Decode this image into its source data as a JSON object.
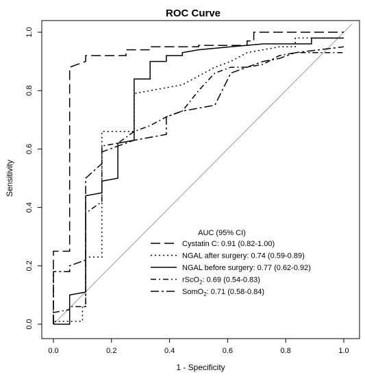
{
  "chart_data": {
    "type": "line",
    "title": "ROC Curve",
    "xlabel": "1 - Specificity",
    "ylabel": "Sensitivity",
    "xlim": [
      0,
      1
    ],
    "ylim": [
      0,
      1
    ],
    "x_ticks": [
      "0.0",
      "0.2",
      "0.4",
      "0.6",
      "0.8",
      "1.0"
    ],
    "y_ticks": [
      "0.0",
      "0.2",
      "0.4",
      "0.6",
      "0.8",
      "1.0"
    ],
    "grid": false,
    "diagonal_reference": true,
    "legend": {
      "title": "AUC (95% CI)",
      "placement": "bottom-right",
      "entries": [
        {
          "label": "Cystatin C: 0.91 (0.82-1.00)",
          "dash": "long-dash"
        },
        {
          "label": "NGAL after surgery: 0.74 (0.59-0.89)",
          "dash": "dotted"
        },
        {
          "label": "NGAL before surgery: 0.77 (0.62-0.92)",
          "dash": "solid"
        },
        {
          "label": "rScO2: 0.69 (0.54-0.83)",
          "label_main": "rScO",
          "label_sub": "2",
          "label_rest": ": 0.69 (0.54-0.83)",
          "dash": "dash-dot"
        },
        {
          "label": "SomO2: 0.71 (0.58-0.84)",
          "label_main": "SomO",
          "label_sub": "2",
          "label_rest": ": 0.71 (0.58-0.84)",
          "dash": "long-dash-dot"
        }
      ]
    },
    "series": [
      {
        "name": "Cystatin C",
        "x": [
          0,
          0,
          0.056,
          0.056,
          0.056,
          0.111,
          0.111,
          0.167,
          0.25,
          0.25,
          0.333,
          0.333,
          0.5,
          0.5,
          0.667,
          0.667,
          0.69,
          0.69,
          1.0,
          1.0
        ],
        "y": [
          0,
          0.25,
          0.25,
          0.5,
          0.88,
          0.9,
          0.92,
          0.92,
          0.92,
          0.94,
          0.94,
          0.95,
          0.95,
          0.955,
          0.955,
          0.97,
          0.97,
          1.0,
          1.0,
          1.0
        ]
      },
      {
        "name": "NGAL after surgery",
        "x": [
          0,
          0,
          0.1,
          0.1,
          0.111,
          0.111,
          0.167,
          0.167,
          0.167,
          0.222,
          0.278,
          0.278,
          0.333,
          0.444,
          0.5,
          0.556,
          0.611,
          0.667,
          0.778,
          0.833,
          0.833,
          1.0
        ],
        "y": [
          0,
          0.01,
          0.01,
          0.06,
          0.06,
          0.23,
          0.23,
          0.42,
          0.66,
          0.66,
          0.66,
          0.79,
          0.8,
          0.82,
          0.85,
          0.88,
          0.9,
          0.93,
          0.95,
          0.95,
          0.98,
          0.98
        ]
      },
      {
        "name": "NGAL before surgery",
        "x": [
          0,
          0,
          0.056,
          0.056,
          0.111,
          0.111,
          0.167,
          0.167,
          0.222,
          0.222,
          0.278,
          0.278,
          0.333,
          0.333,
          0.389,
          0.389,
          0.444,
          0.444,
          0.5,
          0.611,
          0.722,
          0.833,
          0.889,
          0.889,
          1.0
        ],
        "y": [
          0,
          0,
          0,
          0.1,
          0.11,
          0.44,
          0.45,
          0.49,
          0.5,
          0.62,
          0.63,
          0.84,
          0.84,
          0.9,
          0.9,
          0.92,
          0.92,
          0.93,
          0.94,
          0.95,
          0.96,
          0.96,
          0.96,
          0.98,
          0.98
        ]
      },
      {
        "name": "rScO2",
        "x": [
          0,
          0,
          0.056,
          0.056,
          0.111,
          0.111,
          0.167,
          0.167,
          0.222,
          0.278,
          0.333,
          0.389,
          0.444,
          0.5,
          0.556,
          0.611,
          0.667,
          0.722,
          0.778,
          0.833,
          0.889,
          1.0
        ],
        "y": [
          0,
          0.04,
          0.05,
          0.06,
          0.06,
          0.38,
          0.42,
          0.61,
          0.62,
          0.66,
          0.68,
          0.71,
          0.73,
          0.8,
          0.86,
          0.88,
          0.88,
          0.89,
          0.92,
          0.93,
          0.93,
          0.93
        ]
      },
      {
        "name": "SomO2",
        "x": [
          0,
          0,
          0.056,
          0.056,
          0.111,
          0.111,
          0.167,
          0.167,
          0.222,
          0.278,
          0.333,
          0.389,
          0.389,
          0.444,
          0.5,
          0.556,
          0.611,
          0.667,
          0.722,
          0.778,
          0.833,
          1.0
        ],
        "y": [
          0,
          0.18,
          0.18,
          0.2,
          0.22,
          0.5,
          0.55,
          0.59,
          0.61,
          0.63,
          0.64,
          0.65,
          0.71,
          0.73,
          0.74,
          0.75,
          0.86,
          0.88,
          0.9,
          0.91,
          0.93,
          0.95
        ]
      }
    ]
  }
}
